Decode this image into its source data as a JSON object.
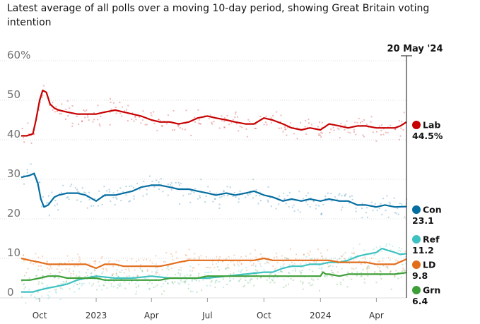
{
  "chart_data": {
    "type": "line",
    "subtitle": "Latest average of all polls over a moving 10-day period, showing Great Britain voting intention",
    "ylim": [
      0,
      60
    ],
    "yticks": [
      {
        "value": 60,
        "label": "60%"
      },
      {
        "value": 50,
        "label": "50"
      },
      {
        "value": 40,
        "label": "40"
      },
      {
        "value": 30,
        "label": "30"
      },
      {
        "value": 20,
        "label": "20"
      },
      {
        "value": 10,
        "label": "10"
      },
      {
        "value": 0,
        "label": "0"
      }
    ],
    "x_start": "2022-09-01",
    "x_end": "2024-05-20",
    "xticks": [
      {
        "date": "2022-10-01",
        "label": "Oct"
      },
      {
        "date": "2023-01-01",
        "label": "2023"
      },
      {
        "date": "2023-04-01",
        "label": "Apr"
      },
      {
        "date": "2023-07-01",
        "label": "Jul"
      },
      {
        "date": "2023-10-01",
        "label": "Oct"
      },
      {
        "date": "2024-01-01",
        "label": "2024"
      },
      {
        "date": "2024-04-01",
        "label": "Apr"
      }
    ],
    "marker_label": "20 May '24",
    "series": [
      {
        "name": "Lab",
        "value_label": "44.5%",
        "color": "#c70000",
        "points": [
          [
            "2022-09-01",
            41
          ],
          [
            "2022-09-10",
            41
          ],
          [
            "2022-09-20",
            41.5
          ],
          [
            "2022-09-25",
            45
          ],
          [
            "2022-10-01",
            50
          ],
          [
            "2022-10-06",
            52.5
          ],
          [
            "2022-10-12",
            52
          ],
          [
            "2022-10-18",
            49
          ],
          [
            "2022-10-25",
            48
          ],
          [
            "2022-11-01",
            47.5
          ],
          [
            "2022-11-15",
            47
          ],
          [
            "2022-12-01",
            46.5
          ],
          [
            "2022-12-15",
            46.5
          ],
          [
            "2023-01-01",
            46.5
          ],
          [
            "2023-01-15",
            47
          ],
          [
            "2023-02-01",
            47.5
          ],
          [
            "2023-02-15",
            47
          ],
          [
            "2023-03-01",
            46.5
          ],
          [
            "2023-03-15",
            46
          ],
          [
            "2023-04-01",
            45
          ],
          [
            "2023-04-15",
            44.5
          ],
          [
            "2023-05-01",
            44.5
          ],
          [
            "2023-05-15",
            44
          ],
          [
            "2023-06-01",
            44.5
          ],
          [
            "2023-06-15",
            45.5
          ],
          [
            "2023-07-01",
            46
          ],
          [
            "2023-07-15",
            45.5
          ],
          [
            "2023-08-01",
            45
          ],
          [
            "2023-08-15",
            44.5
          ],
          [
            "2023-09-01",
            44
          ],
          [
            "2023-09-15",
            44
          ],
          [
            "2023-10-01",
            45.5
          ],
          [
            "2023-10-15",
            45
          ],
          [
            "2023-11-01",
            44
          ],
          [
            "2023-11-15",
            43
          ],
          [
            "2023-12-01",
            42.5
          ],
          [
            "2023-12-15",
            43
          ],
          [
            "2024-01-01",
            42.5
          ],
          [
            "2024-01-15",
            44
          ],
          [
            "2024-02-01",
            43.5
          ],
          [
            "2024-02-15",
            43
          ],
          [
            "2024-03-01",
            43.5
          ],
          [
            "2024-03-15",
            43.5
          ],
          [
            "2024-04-01",
            43
          ],
          [
            "2024-04-15",
            43
          ],
          [
            "2024-05-01",
            43
          ],
          [
            "2024-05-10",
            43.5
          ],
          [
            "2024-05-20",
            44.5
          ]
        ]
      },
      {
        "name": "Con",
        "value_label": "23.1",
        "color": "#056da1",
        "points": [
          [
            "2022-09-01",
            30.5
          ],
          [
            "2022-09-15",
            31
          ],
          [
            "2022-09-22",
            31.5
          ],
          [
            "2022-09-28",
            29
          ],
          [
            "2022-10-03",
            25
          ],
          [
            "2022-10-08",
            23
          ],
          [
            "2022-10-15",
            23.5
          ],
          [
            "2022-10-25",
            25.5
          ],
          [
            "2022-11-01",
            26
          ],
          [
            "2022-11-15",
            26.5
          ],
          [
            "2022-12-01",
            26.5
          ],
          [
            "2022-12-15",
            26
          ],
          [
            "2023-01-01",
            24.5
          ],
          [
            "2023-01-15",
            26
          ],
          [
            "2023-02-01",
            26
          ],
          [
            "2023-02-15",
            26.5
          ],
          [
            "2023-03-01",
            27
          ],
          [
            "2023-03-15",
            28
          ],
          [
            "2023-04-01",
            28.5
          ],
          [
            "2023-04-15",
            28.5
          ],
          [
            "2023-05-01",
            28
          ],
          [
            "2023-05-15",
            27.5
          ],
          [
            "2023-06-01",
            27.5
          ],
          [
            "2023-06-15",
            27
          ],
          [
            "2023-07-01",
            26.5
          ],
          [
            "2023-07-15",
            26
          ],
          [
            "2023-08-01",
            26.5
          ],
          [
            "2023-08-15",
            26
          ],
          [
            "2023-09-01",
            26.5
          ],
          [
            "2023-09-15",
            27
          ],
          [
            "2023-10-01",
            26
          ],
          [
            "2023-10-15",
            25.5
          ],
          [
            "2023-11-01",
            24.5
          ],
          [
            "2023-11-15",
            25
          ],
          [
            "2023-12-01",
            24.5
          ],
          [
            "2023-12-15",
            25
          ],
          [
            "2024-01-01",
            24.5
          ],
          [
            "2024-01-15",
            25
          ],
          [
            "2024-02-01",
            24.5
          ],
          [
            "2024-02-15",
            24.5
          ],
          [
            "2024-03-01",
            23.5
          ],
          [
            "2024-03-15",
            23.5
          ],
          [
            "2024-04-01",
            23
          ],
          [
            "2024-04-15",
            23.5
          ],
          [
            "2024-05-01",
            23
          ],
          [
            "2024-05-20",
            23.1
          ]
        ]
      },
      {
        "name": "Ref",
        "value_label": "11.2",
        "color": "#3fc1c1",
        "points": [
          [
            "2022-09-01",
            1.5
          ],
          [
            "2022-09-20",
            1.5
          ],
          [
            "2022-10-01",
            2
          ],
          [
            "2022-10-15",
            2.5
          ],
          [
            "2022-11-01",
            3
          ],
          [
            "2022-11-15",
            3.5
          ],
          [
            "2022-12-01",
            4.5
          ],
          [
            "2022-12-15",
            5
          ],
          [
            "2023-01-01",
            5.5
          ],
          [
            "2023-02-01",
            5
          ],
          [
            "2023-03-01",
            5
          ],
          [
            "2023-04-01",
            5.5
          ],
          [
            "2023-05-01",
            5
          ],
          [
            "2023-06-01",
            5
          ],
          [
            "2023-07-01",
            5
          ],
          [
            "2023-08-01",
            5.5
          ],
          [
            "2023-09-01",
            6
          ],
          [
            "2023-10-01",
            6.5
          ],
          [
            "2023-10-15",
            6.5
          ],
          [
            "2023-11-01",
            7.5
          ],
          [
            "2023-11-15",
            8
          ],
          [
            "2023-12-01",
            8
          ],
          [
            "2023-12-15",
            8.5
          ],
          [
            "2024-01-01",
            8.5
          ],
          [
            "2024-01-15",
            9
          ],
          [
            "2024-02-01",
            9
          ],
          [
            "2024-02-15",
            9.5
          ],
          [
            "2024-03-01",
            10.5
          ],
          [
            "2024-03-15",
            11
          ],
          [
            "2024-04-01",
            11.5
          ],
          [
            "2024-04-10",
            12.5
          ],
          [
            "2024-04-20",
            12
          ],
          [
            "2024-05-01",
            11.5
          ],
          [
            "2024-05-10",
            11
          ],
          [
            "2024-05-20",
            11.2
          ]
        ]
      },
      {
        "name": "LD",
        "value_label": "9.8",
        "color": "#e26d1b",
        "points": [
          [
            "2022-09-01",
            10
          ],
          [
            "2022-09-15",
            9.5
          ],
          [
            "2022-10-01",
            9
          ],
          [
            "2022-10-15",
            8.5
          ],
          [
            "2022-11-01",
            8.5
          ],
          [
            "2022-11-15",
            8.5
          ],
          [
            "2022-12-01",
            8.5
          ],
          [
            "2022-12-15",
            8.5
          ],
          [
            "2023-01-01",
            7.5
          ],
          [
            "2023-01-15",
            8.5
          ],
          [
            "2023-02-01",
            8.5
          ],
          [
            "2023-02-15",
            8
          ],
          [
            "2023-03-01",
            8
          ],
          [
            "2023-03-15",
            8
          ],
          [
            "2023-04-01",
            8
          ],
          [
            "2023-04-15",
            8
          ],
          [
            "2023-05-01",
            8.5
          ],
          [
            "2023-05-15",
            9
          ],
          [
            "2023-06-01",
            9.5
          ],
          [
            "2023-06-15",
            9.5
          ],
          [
            "2023-07-01",
            9.5
          ],
          [
            "2023-07-15",
            9.5
          ],
          [
            "2023-08-01",
            9.5
          ],
          [
            "2023-08-15",
            9.5
          ],
          [
            "2023-09-01",
            9.5
          ],
          [
            "2023-09-15",
            9.5
          ],
          [
            "2023-10-01",
            10
          ],
          [
            "2023-10-15",
            9.5
          ],
          [
            "2023-11-01",
            9.5
          ],
          [
            "2023-11-15",
            9.5
          ],
          [
            "2023-12-01",
            9.5
          ],
          [
            "2023-12-15",
            9.5
          ],
          [
            "2024-01-01",
            9.5
          ],
          [
            "2024-01-15",
            9.5
          ],
          [
            "2024-02-01",
            9
          ],
          [
            "2024-02-15",
            9
          ],
          [
            "2024-03-01",
            9
          ],
          [
            "2024-03-15",
            9
          ],
          [
            "2024-04-01",
            8.5
          ],
          [
            "2024-04-15",
            8.5
          ],
          [
            "2024-05-01",
            8.5
          ],
          [
            "2024-05-20",
            9.8
          ]
        ]
      },
      {
        "name": "Grn",
        "value_label": "6.4",
        "color": "#3d9f38",
        "points": [
          [
            "2022-09-01",
            4.5
          ],
          [
            "2022-09-15",
            4.5
          ],
          [
            "2022-10-01",
            5
          ],
          [
            "2022-10-15",
            5.5
          ],
          [
            "2022-11-01",
            5.5
          ],
          [
            "2022-11-15",
            5
          ],
          [
            "2022-12-01",
            5
          ],
          [
            "2022-12-15",
            5
          ],
          [
            "2023-01-01",
            5
          ],
          [
            "2023-01-15",
            4.5
          ],
          [
            "2023-02-01",
            4.5
          ],
          [
            "2023-02-15",
            4.5
          ],
          [
            "2023-03-01",
            4.5
          ],
          [
            "2023-03-15",
            4.5
          ],
          [
            "2023-04-01",
            4.5
          ],
          [
            "2023-04-15",
            4.5
          ],
          [
            "2023-05-01",
            5
          ],
          [
            "2023-05-15",
            5
          ],
          [
            "2023-06-01",
            5
          ],
          [
            "2023-06-15",
            5
          ],
          [
            "2023-07-01",
            5.5
          ],
          [
            "2023-07-15",
            5.5
          ],
          [
            "2023-08-01",
            5.5
          ],
          [
            "2023-08-15",
            5.5
          ],
          [
            "2023-09-01",
            5.5
          ],
          [
            "2023-09-15",
            5.5
          ],
          [
            "2023-10-01",
            5.5
          ],
          [
            "2023-10-15",
            5.5
          ],
          [
            "2023-11-01",
            5.5
          ],
          [
            "2023-11-15",
            5.5
          ],
          [
            "2023-12-01",
            5.5
          ],
          [
            "2023-12-15",
            5.5
          ],
          [
            "2024-01-01",
            5.5
          ],
          [
            "2024-01-05",
            6.5
          ],
          [
            "2024-01-10",
            6
          ],
          [
            "2024-01-15",
            6
          ],
          [
            "2024-02-01",
            5.5
          ],
          [
            "2024-02-15",
            6
          ],
          [
            "2024-03-01",
            6
          ],
          [
            "2024-03-15",
            6
          ],
          [
            "2024-04-01",
            6
          ],
          [
            "2024-04-15",
            6
          ],
          [
            "2024-05-01",
            6
          ],
          [
            "2024-05-20",
            6.4
          ]
        ]
      }
    ]
  }
}
